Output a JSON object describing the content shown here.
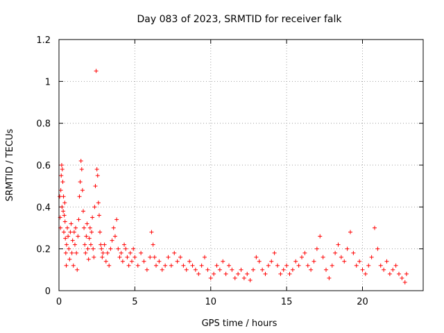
{
  "chart_data": {
    "type": "scatter",
    "title": "Day 083 of 2023, SRMTID for receiver falk",
    "xlabel": "GPS time / hours",
    "ylabel": "SRMTID / TECUs",
    "xlim": [
      0,
      24
    ],
    "ylim": [
      0,
      1.2
    ],
    "xticks": [
      0,
      5,
      10,
      15,
      20
    ],
    "xtick_labels": [
      "0",
      "5",
      "10",
      "15",
      "20"
    ],
    "yticks": [
      0,
      0.2,
      0.4,
      0.6,
      0.8,
      1.0,
      1.2
    ],
    "ytick_labels": [
      "0",
      "0.2",
      "0.4",
      "0.6",
      "0.8",
      "1",
      "1.2"
    ],
    "grid": true,
    "marker": "+",
    "color": "#ff0000",
    "series": [
      {
        "name": "SRMTID",
        "points": [
          [
            0.05,
            0.45
          ],
          [
            0.08,
            0.35
          ],
          [
            0.1,
            0.3
          ],
          [
            0.12,
            0.48
          ],
          [
            0.15,
            0.55
          ],
          [
            0.18,
            0.6
          ],
          [
            0.2,
            0.4
          ],
          [
            0.22,
            0.58
          ],
          [
            0.25,
            0.52
          ],
          [
            0.28,
            0.38
          ],
          [
            0.3,
            0.45
          ],
          [
            0.32,
            0.28
          ],
          [
            0.35,
            0.36
          ],
          [
            0.38,
            0.42
          ],
          [
            0.4,
            0.33
          ],
          [
            0.42,
            0.25
          ],
          [
            0.45,
            0.18
          ],
          [
            0.48,
            0.12
          ],
          [
            0.5,
            0.22
          ],
          [
            0.55,
            0.3
          ],
          [
            0.6,
            0.26
          ],
          [
            0.65,
            0.2
          ],
          [
            0.7,
            0.15
          ],
          [
            0.75,
            0.28
          ],
          [
            0.8,
            0.32
          ],
          [
            0.85,
            0.18
          ],
          [
            0.9,
            0.24
          ],
          [
            0.95,
            0.12
          ],
          [
            1.0,
            0.28
          ],
          [
            1.05,
            0.22
          ],
          [
            1.1,
            0.3
          ],
          [
            1.15,
            0.18
          ],
          [
            1.2,
            0.1
          ],
          [
            1.25,
            0.26
          ],
          [
            1.3,
            0.34
          ],
          [
            1.35,
            0.45
          ],
          [
            1.4,
            0.52
          ],
          [
            1.45,
            0.62
          ],
          [
            1.5,
            0.58
          ],
          [
            1.55,
            0.48
          ],
          [
            1.6,
            0.38
          ],
          [
            1.65,
            0.3
          ],
          [
            1.7,
            0.22
          ],
          [
            1.75,
            0.18
          ],
          [
            1.8,
            0.26
          ],
          [
            1.85,
            0.32
          ],
          [
            1.9,
            0.2
          ],
          [
            1.95,
            0.15
          ],
          [
            2.0,
            0.25
          ],
          [
            2.05,
            0.3
          ],
          [
            2.1,
            0.22
          ],
          [
            2.15,
            0.28
          ],
          [
            2.2,
            0.35
          ],
          [
            2.25,
            0.2
          ],
          [
            2.3,
            0.16
          ],
          [
            2.35,
            0.4
          ],
          [
            2.4,
            0.5
          ],
          [
            2.45,
            1.05
          ],
          [
            2.5,
            0.58
          ],
          [
            2.55,
            0.55
          ],
          [
            2.6,
            0.42
          ],
          [
            2.65,
            0.36
          ],
          [
            2.7,
            0.28
          ],
          [
            2.75,
            0.22
          ],
          [
            2.8,
            0.2
          ],
          [
            2.85,
            0.16
          ],
          [
            2.9,
            0.18
          ],
          [
            3.0,
            0.22
          ],
          [
            3.1,
            0.14
          ],
          [
            3.2,
            0.18
          ],
          [
            3.3,
            0.12
          ],
          [
            3.4,
            0.2
          ],
          [
            3.5,
            0.24
          ],
          [
            3.6,
            0.3
          ],
          [
            3.7,
            0.26
          ],
          [
            3.8,
            0.34
          ],
          [
            3.9,
            0.2
          ],
          [
            4.0,
            0.16
          ],
          [
            4.1,
            0.18
          ],
          [
            4.2,
            0.14
          ],
          [
            4.3,
            0.22
          ],
          [
            4.4,
            0.2
          ],
          [
            4.5,
            0.16
          ],
          [
            4.6,
            0.12
          ],
          [
            4.7,
            0.18
          ],
          [
            4.8,
            0.14
          ],
          [
            4.9,
            0.2
          ],
          [
            5.0,
            0.16
          ],
          [
            5.2,
            0.12
          ],
          [
            5.4,
            0.18
          ],
          [
            5.6,
            0.14
          ],
          [
            5.8,
            0.1
          ],
          [
            6.0,
            0.16
          ],
          [
            6.1,
            0.28
          ],
          [
            6.2,
            0.22
          ],
          [
            6.3,
            0.16
          ],
          [
            6.4,
            0.12
          ],
          [
            6.6,
            0.14
          ],
          [
            6.8,
            0.1
          ],
          [
            7.0,
            0.12
          ],
          [
            7.2,
            0.16
          ],
          [
            7.4,
            0.12
          ],
          [
            7.6,
            0.18
          ],
          [
            7.8,
            0.14
          ],
          [
            8.0,
            0.16
          ],
          [
            8.2,
            0.12
          ],
          [
            8.4,
            0.1
          ],
          [
            8.6,
            0.14
          ],
          [
            8.8,
            0.12
          ],
          [
            9.0,
            0.1
          ],
          [
            9.2,
            0.08
          ],
          [
            9.4,
            0.12
          ],
          [
            9.6,
            0.16
          ],
          [
            9.8,
            0.1
          ],
          [
            10.0,
            0.06
          ],
          [
            10.2,
            0.08
          ],
          [
            10.4,
            0.12
          ],
          [
            10.6,
            0.1
          ],
          [
            10.8,
            0.14
          ],
          [
            11.0,
            0.08
          ],
          [
            11.2,
            0.12
          ],
          [
            11.4,
            0.1
          ],
          [
            11.6,
            0.06
          ],
          [
            11.8,
            0.08
          ],
          [
            12.0,
            0.1
          ],
          [
            12.2,
            0.06
          ],
          [
            12.4,
            0.08
          ],
          [
            12.6,
            0.05
          ],
          [
            12.8,
            0.1
          ],
          [
            13.0,
            0.16
          ],
          [
            13.2,
            0.14
          ],
          [
            13.4,
            0.1
          ],
          [
            13.6,
            0.08
          ],
          [
            13.8,
            0.12
          ],
          [
            14.0,
            0.14
          ],
          [
            14.2,
            0.18
          ],
          [
            14.4,
            0.12
          ],
          [
            14.6,
            0.08
          ],
          [
            14.8,
            0.1
          ],
          [
            15.0,
            0.12
          ],
          [
            15.2,
            0.08
          ],
          [
            15.4,
            0.1
          ],
          [
            15.6,
            0.14
          ],
          [
            15.8,
            0.12
          ],
          [
            16.0,
            0.16
          ],
          [
            16.2,
            0.18
          ],
          [
            16.4,
            0.12
          ],
          [
            16.6,
            0.1
          ],
          [
            16.8,
            0.14
          ],
          [
            17.0,
            0.2
          ],
          [
            17.2,
            0.26
          ],
          [
            17.4,
            0.16
          ],
          [
            17.6,
            0.1
          ],
          [
            17.8,
            0.06
          ],
          [
            18.0,
            0.12
          ],
          [
            18.2,
            0.18
          ],
          [
            18.4,
            0.22
          ],
          [
            18.6,
            0.16
          ],
          [
            18.8,
            0.14
          ],
          [
            19.0,
            0.2
          ],
          [
            19.2,
            0.28
          ],
          [
            19.4,
            0.18
          ],
          [
            19.6,
            0.12
          ],
          [
            19.8,
            0.14
          ],
          [
            20.0,
            0.1
          ],
          [
            20.2,
            0.08
          ],
          [
            20.4,
            0.12
          ],
          [
            20.6,
            0.16
          ],
          [
            20.8,
            0.3
          ],
          [
            21.0,
            0.2
          ],
          [
            21.2,
            0.12
          ],
          [
            21.4,
            0.1
          ],
          [
            21.6,
            0.14
          ],
          [
            21.8,
            0.08
          ],
          [
            22.0,
            0.1
          ],
          [
            22.2,
            0.12
          ],
          [
            22.4,
            0.08
          ],
          [
            22.6,
            0.06
          ],
          [
            22.8,
            0.04
          ],
          [
            22.9,
            0.08
          ]
        ]
      }
    ]
  }
}
